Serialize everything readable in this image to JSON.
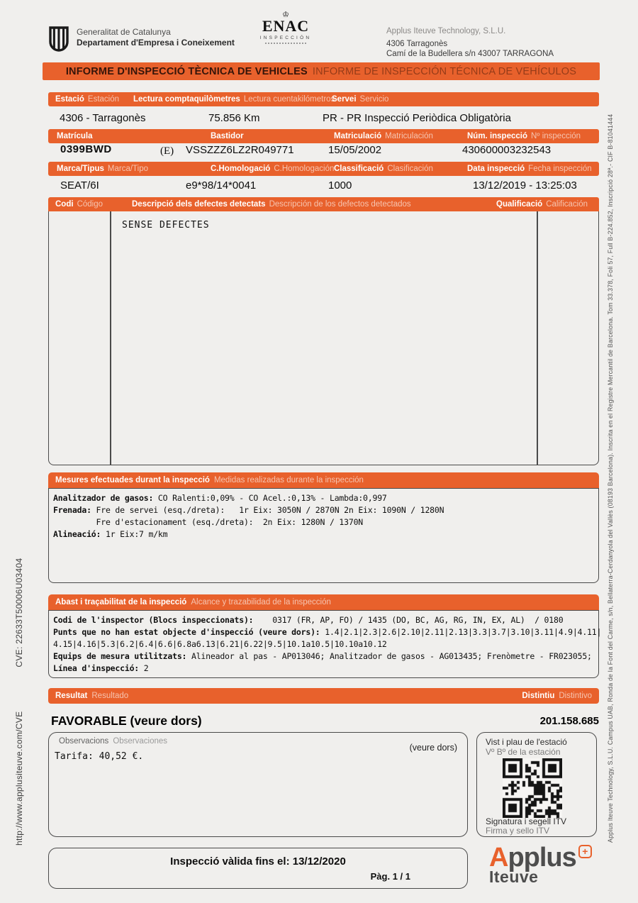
{
  "header": {
    "generalitat_line1": "Generalitat de Catalunya",
    "generalitat_line2": "Departament d'Empresa i Coneixement",
    "enac_crown": "♔",
    "enac_name": "ENAC",
    "enac_subtitle": "INSPECCIÓN",
    "company_name": "Applus Iteuve Technology, S.L.U.",
    "company_station": "4306 Tarragonès",
    "company_address": "Camí de la Budellera s/n 43007 TARRAGONA"
  },
  "banner": {
    "ca": "INFORME D'INSPECCIÓ TÈCNICA DE VEHICLES",
    "es": "INFORME DE INSPECCIÓN TÉCNICA DE VEHÍCULOS"
  },
  "fields": {
    "row1_headers": [
      {
        "ca": "Estació",
        "es": "Estación"
      },
      {
        "ca": "Lectura comptaquilòmetres",
        "es": "Lectura cuentakilómetros"
      },
      {
        "ca": "Servei",
        "es": "Servicio"
      }
    ],
    "row1_values": {
      "estacio": "4306 - Tarragonès",
      "lectura": "75.856 Km",
      "servei": "PR - PR Inspecció Periòdica Obligatòria"
    },
    "row2_headers": [
      {
        "ca": "Matrícula",
        "es": ""
      },
      {
        "ca": "Bastidor",
        "es": ""
      },
      {
        "ca": "Matriculació",
        "es": "Matriculación"
      },
      {
        "ca": "Núm. inspecció",
        "es": "Nº inspección"
      }
    ],
    "row2_values": {
      "matricula": "0399BWD",
      "country": "(E)",
      "bastidor": "VSSZZZ6LZ2R049771",
      "matriculacio": "15/05/2002",
      "num_inspeccio": "430600003232543"
    },
    "row3_headers": [
      {
        "ca": "Marca/Tipus",
        "es": "Marca/Tipo"
      },
      {
        "ca": "C.Homologació",
        "es": "C.Homologación"
      },
      {
        "ca": "Classificació",
        "es": "Clasificación"
      },
      {
        "ca": "Data inspecció",
        "es": "Fecha inspección"
      }
    ],
    "row3_values": {
      "marca": "SEAT/6I",
      "homologacio": "e9*98/14*0041",
      "classificacio": "1000",
      "data": "13/12/2019 - 13:25:03"
    }
  },
  "defects": {
    "headers": [
      {
        "ca": "Codi",
        "es": "Código"
      },
      {
        "ca": "Descripció dels defectes detectats",
        "es": "Descripción de los defectos detectados"
      },
      {
        "ca": "Qualificació",
        "es": "Calificación"
      }
    ],
    "content": "SENSE DEFECTES"
  },
  "mesures": {
    "title_ca": "Mesures efectuades durant la inspecció",
    "title_es": "Medidas realizadas durante la inspección",
    "lines": [
      {
        "label": "Analitzador de gasos:",
        "text": " CO Ralenti:0,09% - CO Acel.:0,13% - Lambda:0,997"
      },
      {
        "label": "Frenada:",
        "text": " Fre de servei (esq./dreta):   1r Eix: 3050N / 2870N 2n Eix: 1090N / 1280N"
      },
      {
        "label": "",
        "text": "         Fre d'estacionament (esq./dreta):  2n Eix: 1280N / 1370N"
      },
      {
        "label": "Alineació:",
        "text": " 1r Eix:7 m/km"
      }
    ]
  },
  "abast": {
    "title_ca": "Abast i traçabilitat de la inspecció",
    "title_es": "Alcance y trazabilidad de la inspección",
    "lines": [
      {
        "label": "Codi de l'inspector (Blocs inspeccionats):",
        "text": "    0317 (FR, AP, FO) / 1435 (DO, BC, AG, RG, IN, EX, AL)  / 0180"
      },
      {
        "label": "Punts que no han estat objecte d'inspecció (veure dors):",
        "text": " 1.4|2.1|2.3|2.6|2.10|2.11|2.13|3.3|3.7|3.10|3.11|4.9|4.11|"
      },
      {
        "label": "",
        "text": "4.15|4.16|5.3|6.2|6.4|6.6|6.8a6.13|6.21|6.22|9.5|10.1a10.5|10.10a10.12"
      },
      {
        "label": "Equips de mesura utilitzats:",
        "text": " Alineador al pas - AP013046; Analitzador de gasos - AG013435; Frenòmetre - FR023055;"
      },
      {
        "label": "Línea d'inspecció:",
        "text": " 2"
      }
    ]
  },
  "result": {
    "bar_ca": "Resultat",
    "bar_es": "Resultado",
    "distintiu_ca": "Distintiu",
    "distintiu_es": "Distintivo",
    "value": "FAVORABLE (veure dors)",
    "distintiu_value": "201.158.685",
    "obs_label_ca": "Observacions",
    "obs_label_es": "Observaciones",
    "obs_note": "(veure dors)",
    "obs_content": "Tarifa: 40,52 €.",
    "vist_line1": "Vist i plau de l'estació",
    "vist_line2": "Vº Bº de la estación",
    "sig_line1": "Signatura i segell ITV",
    "sig_line2": "Firma y sello ITV"
  },
  "footer": {
    "validity": "Inspecció vàlida fins el: 13/12/2020",
    "page": "Pàg. 1 / 1",
    "brand_a": "A",
    "brand_rest": "pplus",
    "brand_plus": "+",
    "brand_sub": "Iteuve"
  },
  "side": {
    "left_url": "http://www.applusiteuve.com/CVE",
    "left_cve": "CVE: 22633T50006U03404",
    "right_text": "Applus Iteuve Technology, S.L.U. Campus UAB, Ronda de la Font del Carme, s/n, Bellaterra-Cerdanyola del Vallès (08193 Barcelona). Inscrita en el Registre Mercantil de Barcelona. Tom 33.378, Foli 57, Full B-224.852, Inscripció 28ª.- CIF B-81041444"
  },
  "colors": {
    "orange": "#e8612c",
    "paper": "#f0efed",
    "ink": "#161616"
  }
}
